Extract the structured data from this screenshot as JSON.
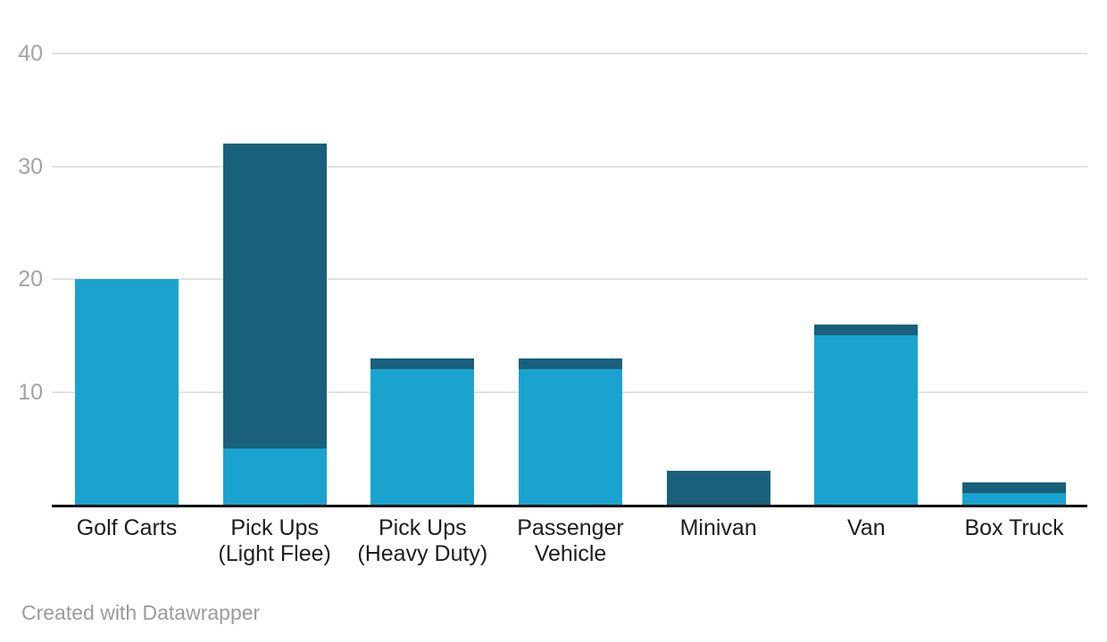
{
  "footer": {
    "attribution": "Created with Datawrapper"
  },
  "colors": {
    "background": "#ffffff",
    "series_light_blue": "#1BA3CF",
    "series_dark_teal": "#19607C",
    "gridline": "#e2e2e2",
    "axis_line": "#111111",
    "tick_label": "#a3a3a3",
    "category_label": "#1d1d1d",
    "attribution_text": "#9b9b9b"
  },
  "chart_data": {
    "type": "bar",
    "stacked": true,
    "title": "",
    "xlabel": "",
    "ylabel": "",
    "legend": "none",
    "grid": true,
    "categories": [
      "Golf Carts",
      "Pick Ups (Light Flee)",
      "Pick Ups (Heavy Duty)",
      "Passenger Vehicle",
      "Minivan",
      "Van",
      "Box Truck"
    ],
    "category_label_lines": [
      [
        "Golf Carts"
      ],
      [
        "Pick Ups",
        "(Light Flee)"
      ],
      [
        "Pick Ups",
        "(Heavy Duty)"
      ],
      [
        "Passenger",
        "Vehicle"
      ],
      [
        "Minivan"
      ],
      [
        "Van"
      ],
      [
        "Box Truck"
      ]
    ],
    "series": [
      {
        "name": "light-blue-segment",
        "color": "#1BA3CF",
        "values": [
          20,
          5,
          12,
          12,
          0,
          15,
          1
        ]
      },
      {
        "name": "dark-teal-segment",
        "color": "#19607C",
        "values": [
          0,
          27,
          1,
          1,
          3,
          1,
          1
        ]
      }
    ],
    "totals": [
      20,
      32,
      13,
      13,
      3,
      16,
      2
    ],
    "y_ticks": [
      10,
      20,
      30,
      40
    ],
    "ylim": [
      0,
      40
    ]
  }
}
